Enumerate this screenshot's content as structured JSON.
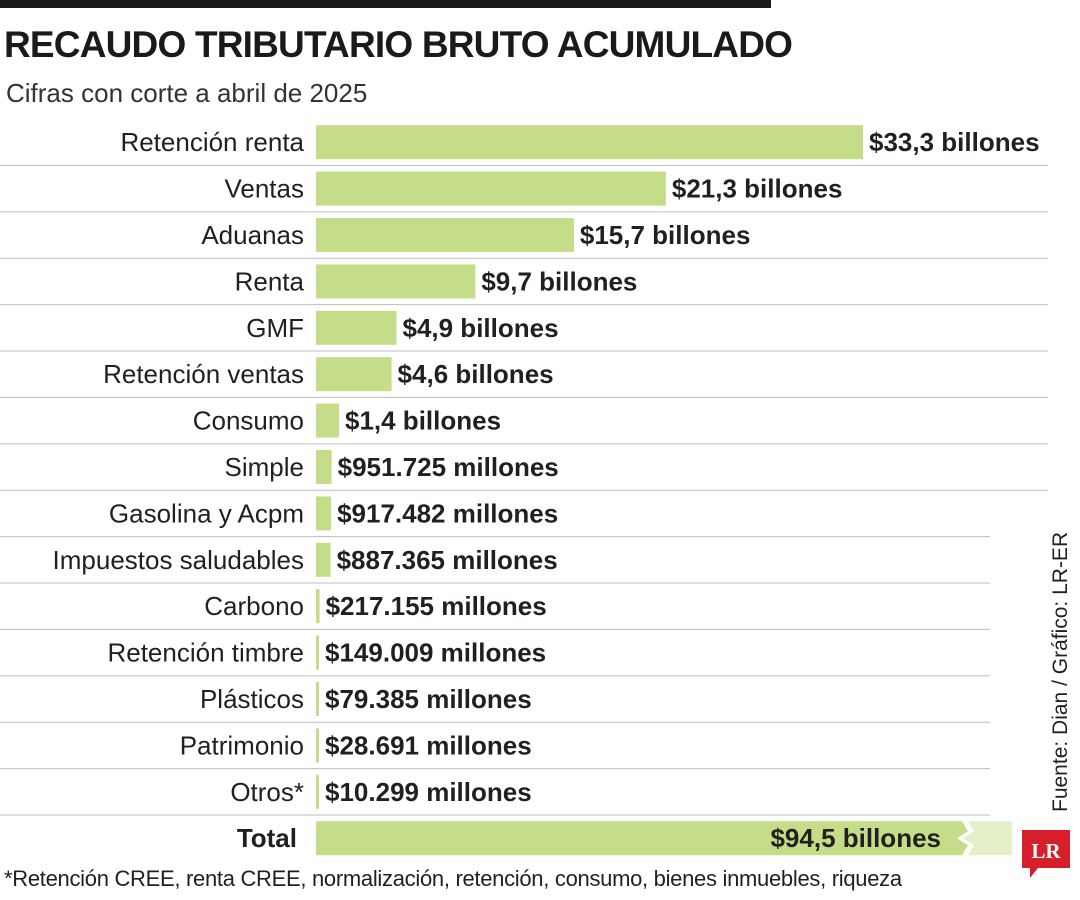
{
  "title": "RECAUDO TRIBUTARIO BRUTO ACUMULADO",
  "subtitle": "Cifras con corte a abril de 2025",
  "source": "Fuente: Dian / Gráfico: LR-ER",
  "logo_text": "LR",
  "footnote": "*Retención CREE, renta CREE, normalización, retención, consumo, bienes inmuebles, riqueza",
  "colors": {
    "bar": "#c5dd88",
    "row_line": "#bdbdbd",
    "text": "#231f20",
    "logo": "#d71f2b"
  },
  "chart_data": {
    "type": "bar",
    "orientation": "horizontal",
    "unit_note": "values in billones (1 billón = 1.000.000 millones)",
    "categories": [
      "Retención renta",
      "Ventas",
      "Aduanas",
      "Renta",
      "GMF",
      "Retención ventas",
      "Consumo",
      "Simple",
      "Gasolina y Acpm",
      "Impuestos saludables",
      "Carbono",
      "Retención timbre",
      "Plásticos",
      "Patrimonio",
      "Otros*"
    ],
    "values": [
      33.3,
      21.3,
      15.7,
      9.7,
      4.9,
      4.6,
      1.4,
      0.951725,
      0.917482,
      0.887365,
      0.217155,
      0.149009,
      0.079385,
      0.028691,
      0.010299
    ],
    "labels": [
      "$33,3 billones",
      "$21,3 billones",
      "$15,7 billones",
      "$9,7 billones",
      "$4,9 billones",
      "$4,6 billones",
      "$1,4 billones",
      "$951.725 millones",
      "$917.482 millones",
      "$887.365 millones",
      "$217.155 millones",
      "$149.009 millones",
      "$79.385 millones",
      "$28.691 millones",
      "$10.299 millones"
    ],
    "total": {
      "category": "Total",
      "value": 94.5,
      "label": "$94,5 billones",
      "truncated": true
    },
    "xlim": [
      0,
      33.3
    ],
    "grid": false,
    "legend": "none"
  }
}
